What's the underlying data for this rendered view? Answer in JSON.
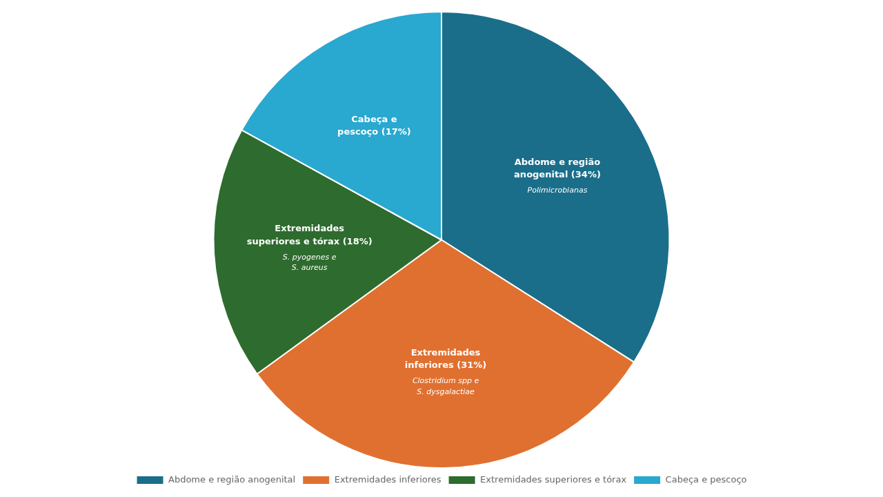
{
  "chart_data": {
    "type": "pie",
    "categories": [
      "Abdome e região anogenital",
      "Extremidades inferiores",
      "Extremidades superiores e tórax",
      "Cabeça e pescoço"
    ],
    "values": [
      34,
      31,
      18,
      17
    ],
    "colors": [
      "#1a6e8a",
      "#e07030",
      "#2e6b2e",
      "#29a8d0"
    ],
    "data_labels": true,
    "value_labels": [
      "Abdome e região\nanogenital (34%)",
      "Extremidades\ninferiores (31%)",
      "Extremidades\nsuperiores e tórax (18%)",
      "Cabeça e\npescoço (17%)"
    ],
    "annotations": [
      {
        "category": "Abdome e região anogenital",
        "text": "Polimicrobianas"
      },
      {
        "category": "Extremidades inferiores",
        "text": "Clostridium spp e\nS. dysgalactiae"
      },
      {
        "category": "Extremidades superiores e tórax",
        "text": "S. pyogenes e\nS. aureus"
      }
    ],
    "legend": "bottom"
  }
}
